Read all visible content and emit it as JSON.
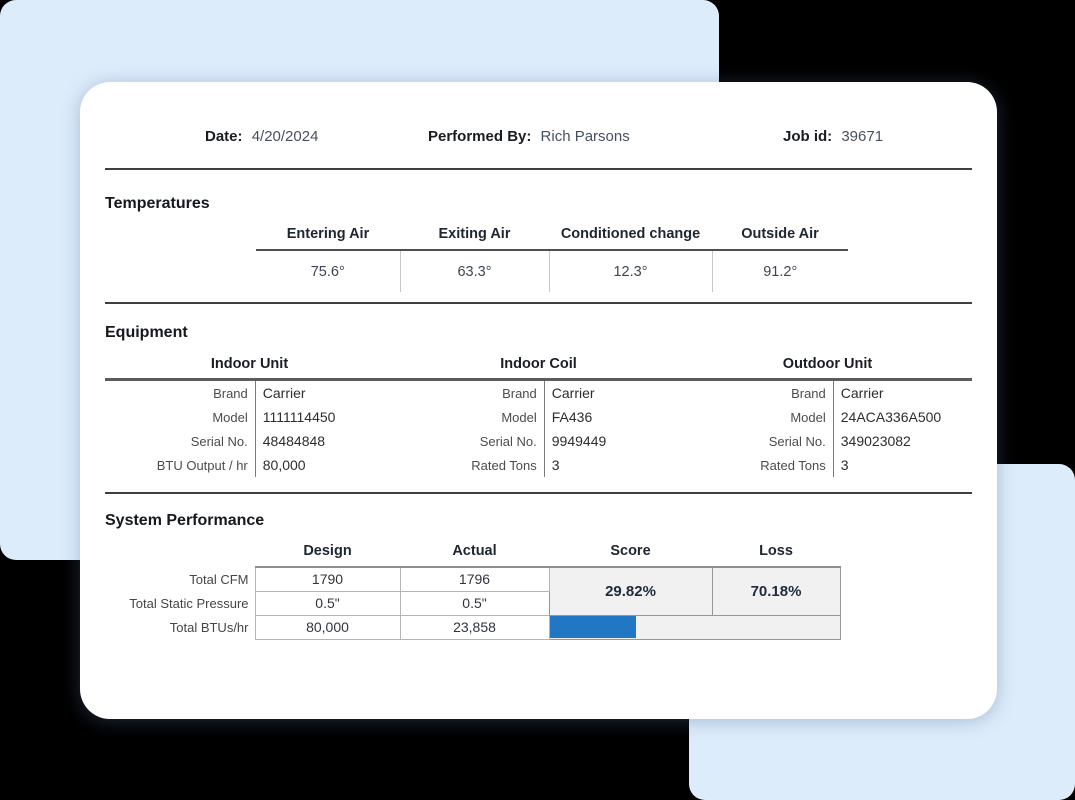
{
  "colors": {
    "background": "#000000",
    "panel_blue": "#ddecfb",
    "card": "#ffffff",
    "accent_bar_blue": "#2277c5",
    "merge_cell_gray": "#f1f1f1"
  },
  "header": {
    "date_label": "Date:",
    "date_value": "4/20/2024",
    "performed_by_label": "Performed By:",
    "performed_by_value": "Rich Parsons",
    "job_id_label": "Job id:",
    "job_id_value": "39671"
  },
  "temperatures": {
    "title": "Temperatures",
    "columns": [
      "Entering Air",
      "Exiting Air",
      "Conditioned change",
      "Outside Air"
    ],
    "values": [
      "75.6°",
      "63.3°",
      "12.3°",
      "91.2°"
    ]
  },
  "equipment": {
    "title": "Equipment",
    "units": [
      {
        "name": "Indoor Unit",
        "rows": [
          [
            "Brand",
            "Carrier"
          ],
          [
            "Model",
            "1111114450"
          ],
          [
            "Serial No.",
            "48484848"
          ],
          [
            "BTU Output / hr",
            "80,000"
          ]
        ]
      },
      {
        "name": "Indoor Coil",
        "rows": [
          [
            "Brand",
            "Carrier"
          ],
          [
            "Model",
            "FA436"
          ],
          [
            "Serial No.",
            "9949449"
          ],
          [
            "Rated Tons",
            "3"
          ]
        ]
      },
      {
        "name": "Outdoor Unit",
        "rows": [
          [
            "Brand",
            "Carrier"
          ],
          [
            "Model",
            "24ACA336A500"
          ],
          [
            "Serial No.",
            "349023082"
          ],
          [
            "Rated Tons",
            "3"
          ]
        ]
      }
    ]
  },
  "performance": {
    "title": "System Performance",
    "columns": [
      "Design",
      "Actual",
      "Score",
      "Loss"
    ],
    "rows": [
      {
        "label": "Total CFM",
        "design": "1790",
        "actual": "1796"
      },
      {
        "label": "Total Static Pressure",
        "design": "0.5\"",
        "actual": "0.5\""
      },
      {
        "label": "Total BTUs/hr",
        "design": "80,000",
        "actual": "23,858"
      }
    ],
    "score": "29.82%",
    "loss": "70.18%",
    "bar_percent": 29.82
  }
}
